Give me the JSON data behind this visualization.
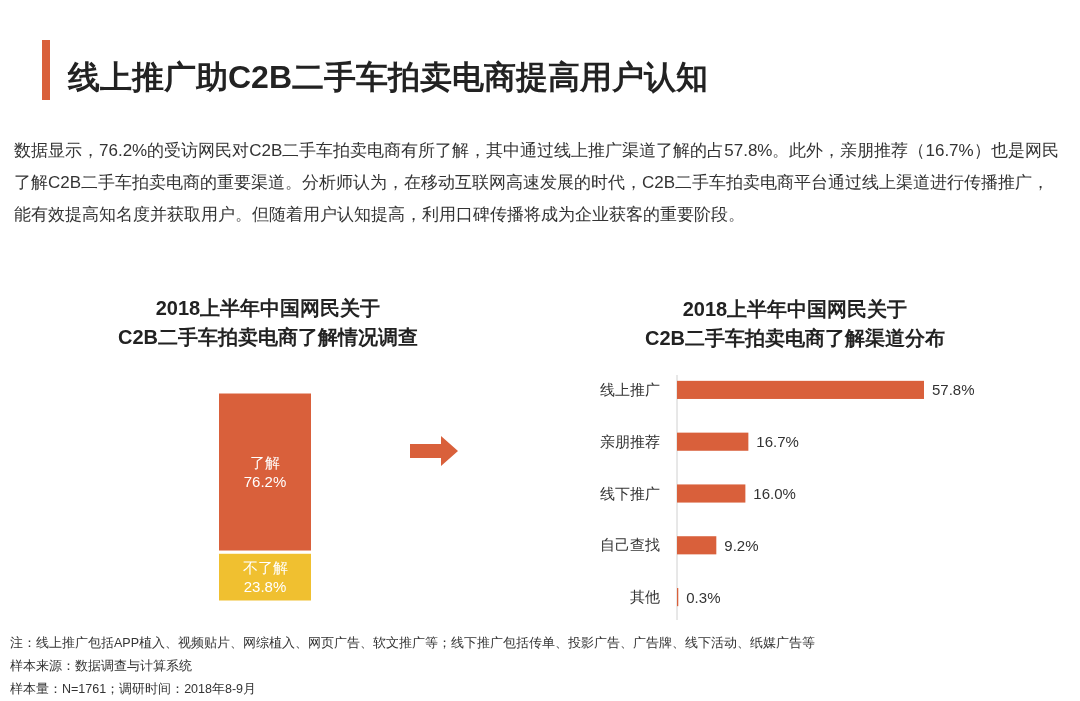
{
  "chart_data": [
    {
      "type": "other",
      "title": "线上推广助C2B二手车拍卖电商提高用户认知",
      "subtitle": "数据显示，76.2%的受访网民对C2B二手车拍卖电商有所了解，其中通过线上推广渠道了解的占57.8%。此外，亲朋推荐（16.7%）也是网民了解C2B二手车拍卖电商的重要渠道。分析师认为，在移动互联网高速发展的时代，C2B二手车拍卖电商平台通过线上渠道进行传播推广，能有效提高知名度并获取用户。但随着用户认知提高，利用口碑传播将成为企业获客的重要阶段。",
      "annotations": [
        "注：线上推广包括APP植入、视频贴片、网综植入、网页广告、软文推广等；线下推广包括传单、投影广告、广告牌、线下活动、纸媒广告等",
        "样本来源：数据调查与计算系统",
        "样本量：N=1761；调研时间：2018年8-9月"
      ]
    },
    {
      "type": "bar",
      "stacked": true,
      "title": "2018上半年中国网民关于\nC2B二手车拍卖电商了解情况调查",
      "categories": [
        null
      ],
      "series": [
        {
          "name": "不了解",
          "color": "#f0c030",
          "values": [
            23.8
          ],
          "value_labels": [
            "23.8%"
          ]
        },
        {
          "name": "了解",
          "color": "#d9603b",
          "values": [
            76.2
          ],
          "value_labels": [
            "76.2%"
          ]
        }
      ]
    },
    {
      "type": "bar",
      "orientation": "horizontal",
      "title": "2018上半年中国网民关于\nC2B二手车拍卖电商了解渠道分布",
      "categories": [
        "线上推广",
        "亲朋推荐",
        "线下推广",
        "自己查找",
        "其他"
      ],
      "values": [
        57.8,
        16.7,
        16.0,
        9.2,
        0.3
      ],
      "color": "#d9603b",
      "value_labels": [
        "57.8%",
        "16.7%",
        "16.0%",
        "9.2%",
        "0.3%"
      ],
      "tick_labels": "y"
    }
  ]
}
